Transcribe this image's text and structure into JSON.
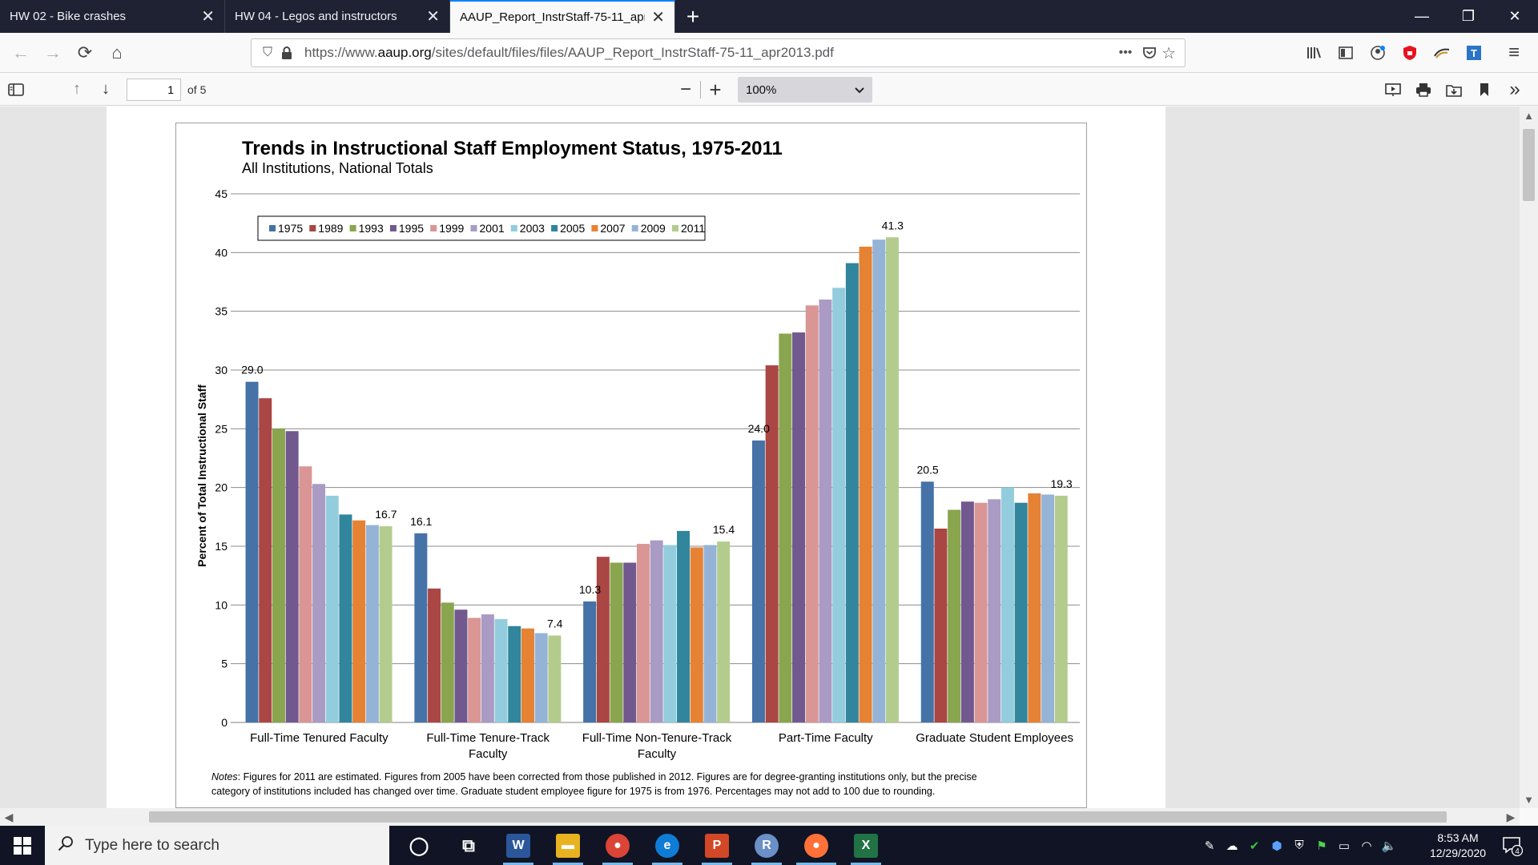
{
  "browser": {
    "tabs": [
      {
        "title": "HW 02 - Bike crashes",
        "active": false
      },
      {
        "title": "HW 04 - Legos and instructors",
        "active": false
      },
      {
        "title": "AAUP_Report_InstrStaff-75-11_apr2",
        "active": true
      }
    ],
    "url_prefix": "https://www.",
    "url_host": "aaup.org",
    "url_path": "/sites/default/files/files/AAUP_Report_InstrStaff-75-11_apr2013.pdf"
  },
  "pdf": {
    "page_number": "1",
    "page_total": "of 5",
    "zoom": "100%"
  },
  "chart_data": {
    "type": "bar",
    "title": "Trends in Instructional Staff Employment Status, 1975-2011",
    "subtitle": "All Institutions, National Totals",
    "xlabel": "",
    "ylabel": "Percent of Total Instructional Staff",
    "ylim": [
      0,
      45
    ],
    "yticks": [
      0,
      5,
      10,
      15,
      20,
      25,
      30,
      35,
      40,
      45
    ],
    "grid": true,
    "legend_position": "top-left",
    "categories": [
      "Full-Time Tenured Faculty",
      "Full-Time Tenure-Track Faculty",
      "Full-Time Non-Tenure-Track Faculty",
      "Part-Time Faculty",
      "Graduate Student Employees"
    ],
    "category_lines": [
      [
        "Full-Time Tenured Faculty"
      ],
      [
        "Full-Time Tenure-Track",
        "Faculty"
      ],
      [
        "Full-Time Non-Tenure-Track",
        "Faculty"
      ],
      [
        "Part-Time Faculty"
      ],
      [
        "Graduate Student Employees"
      ]
    ],
    "series": [
      {
        "name": "1975",
        "color": "#4572a7",
        "values": [
          29.0,
          16.1,
          10.3,
          24.0,
          20.5
        ]
      },
      {
        "name": "1989",
        "color": "#aa4643",
        "values": [
          27.6,
          11.4,
          14.1,
          30.4,
          16.5
        ]
      },
      {
        "name": "1993",
        "color": "#89a54e",
        "values": [
          25.0,
          10.2,
          13.6,
          33.1,
          18.1
        ]
      },
      {
        "name": "1995",
        "color": "#71588f",
        "values": [
          24.8,
          9.6,
          13.6,
          33.2,
          18.8
        ]
      },
      {
        "name": "1999",
        "color": "#d99694",
        "values": [
          21.8,
          8.9,
          15.2,
          35.5,
          18.7
        ]
      },
      {
        "name": "2001",
        "color": "#a99bc4",
        "values": [
          20.3,
          9.2,
          15.5,
          36.0,
          19.0
        ]
      },
      {
        "name": "2003",
        "color": "#93cddd",
        "values": [
          19.3,
          8.8,
          15.1,
          37.0,
          20.0
        ]
      },
      {
        "name": "2005",
        "color": "#31859c",
        "values": [
          17.7,
          8.2,
          16.3,
          39.1,
          18.7
        ]
      },
      {
        "name": "2007",
        "color": "#e68233",
        "values": [
          17.2,
          8.0,
          14.9,
          40.5,
          19.5
        ]
      },
      {
        "name": "2009",
        "color": "#95b3d7",
        "values": [
          16.8,
          7.6,
          15.1,
          41.1,
          19.4
        ]
      },
      {
        "name": "2011",
        "color": "#b3cc8d",
        "values": [
          16.7,
          7.4,
          15.4,
          41.3,
          19.3
        ]
      }
    ],
    "data_labels": [
      {
        "series": "1975",
        "category": 0,
        "text": "29.0"
      },
      {
        "series": "2011",
        "category": 0,
        "text": "16.7"
      },
      {
        "series": "1975",
        "category": 1,
        "text": "16.1"
      },
      {
        "series": "2011",
        "category": 1,
        "text": "7.4"
      },
      {
        "series": "1975",
        "category": 2,
        "text": "10.3"
      },
      {
        "series": "2011",
        "category": 2,
        "text": "15.4"
      },
      {
        "series": "1975",
        "category": 3,
        "text": "24.0"
      },
      {
        "series": "2011",
        "category": 3,
        "text": "41.3"
      },
      {
        "series": "1975",
        "category": 4,
        "text": "20.5"
      },
      {
        "series": "2011",
        "category": 4,
        "text": "19.3"
      }
    ],
    "notes_label": "Notes",
    "notes_line1": ": Figures for 2011 are estimated. Figures from 2005 have been corrected from those published in 2012. Figures are for degree-granting institutions only, but the precise",
    "notes_line2": "category of institutions included has changed over time. Graduate student employee figure for 1975 is from 1976. Percentages may not add to 100 due to rounding."
  },
  "taskbar": {
    "search_placeholder": "Type here to search",
    "apps": [
      {
        "name": "cortana",
        "glyph": "◯",
        "color": "transparent"
      },
      {
        "name": "task-view",
        "glyph": "⧉",
        "color": "transparent"
      },
      {
        "name": "word",
        "glyph": "W",
        "color": "#2b579a"
      },
      {
        "name": "file-explorer",
        "glyph": "▬",
        "color": "#e8b321"
      },
      {
        "name": "chrome",
        "glyph": "●",
        "color": "#db4437"
      },
      {
        "name": "edge",
        "glyph": "e",
        "color": "#0f7cd6"
      },
      {
        "name": "powerpoint",
        "glyph": "P",
        "color": "#d24726"
      },
      {
        "name": "r",
        "glyph": "R",
        "color": "#6b8fc7"
      },
      {
        "name": "firefox",
        "glyph": "●",
        "color": "#ff7139"
      },
      {
        "name": "excel",
        "glyph": "X",
        "color": "#217346"
      }
    ],
    "time": "8:53 AM",
    "date": "12/29/2020",
    "notification_count": "4"
  },
  "icons": {
    "back": "←",
    "forward": "→",
    "reload": "⟳",
    "home": "⌂",
    "lock": "🔒",
    "shield": "⛉",
    "more": "•••",
    "pocket": "⛊",
    "star": "☆",
    "sidebar": "▤",
    "up": "↑",
    "down": "↓",
    "minus": "−",
    "plus": "+",
    "chevron_down": "⌄",
    "menu": "≡",
    "overflow": "»",
    "close": "✕",
    "minimize": "—",
    "restore": "❐",
    "new_tab": "+"
  }
}
